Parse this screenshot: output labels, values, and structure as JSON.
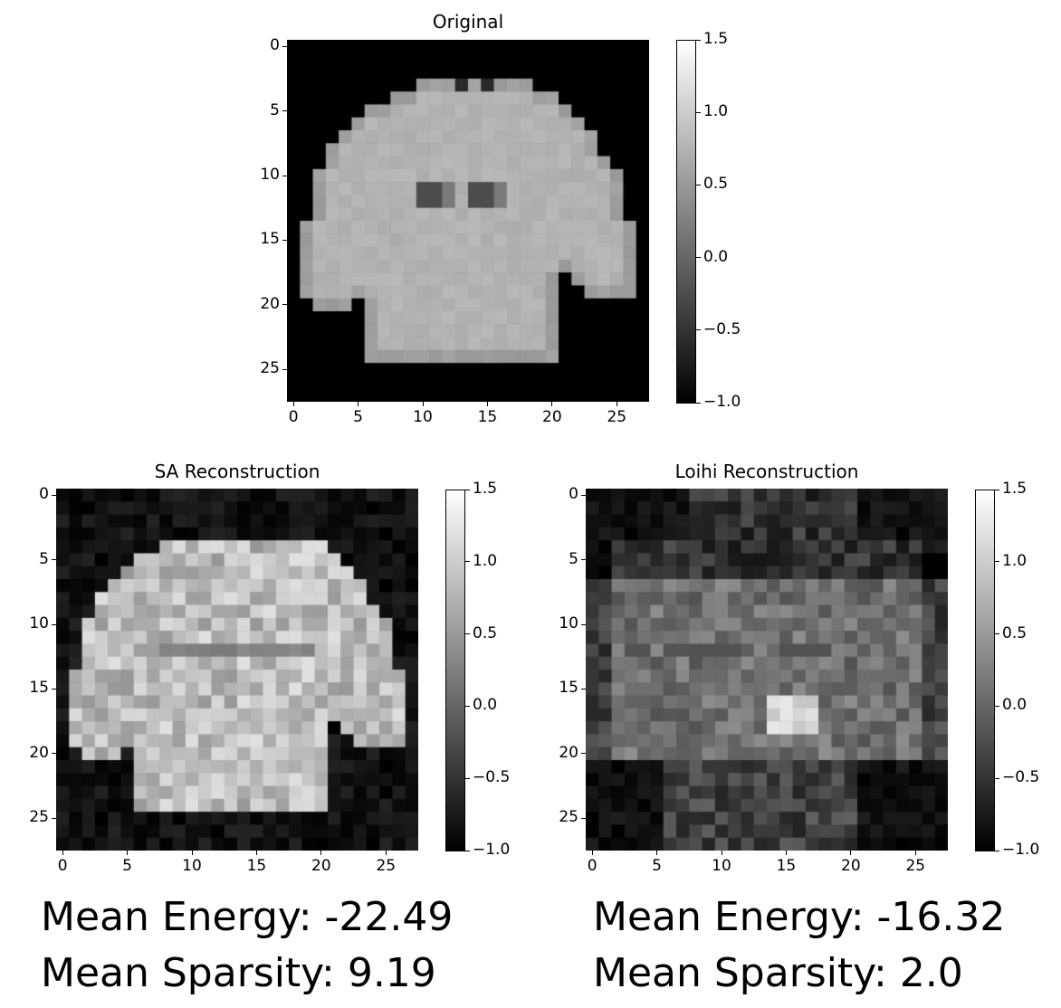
{
  "chart_data": [
    {
      "type": "heatmap",
      "title": "Original",
      "xlabel": "",
      "ylabel": "",
      "x_ticks": [
        "0",
        "5",
        "10",
        "15",
        "20",
        "25"
      ],
      "y_ticks": [
        "0",
        "5",
        "10",
        "15",
        "20",
        "25"
      ],
      "grid_size": [
        28,
        28
      ],
      "clim": [
        -1.0,
        1.5
      ],
      "colorbar_ticks": [
        "1.5",
        "1.0",
        "0.5",
        "0.0",
        "−0.5",
        "−1.0"
      ],
      "colormap": "gray"
    },
    {
      "type": "heatmap",
      "title": "SA Reconstruction",
      "xlabel": "",
      "ylabel": "",
      "x_ticks": [
        "0",
        "5",
        "10",
        "15",
        "20",
        "25"
      ],
      "y_ticks": [
        "0",
        "5",
        "10",
        "15",
        "20",
        "25"
      ],
      "grid_size": [
        28,
        28
      ],
      "clim": [
        -1.0,
        1.5
      ],
      "colorbar_ticks": [
        "1.5",
        "1.0",
        "0.5",
        "0.0",
        "−0.5",
        "−1.0"
      ],
      "colormap": "gray"
    },
    {
      "type": "heatmap",
      "title": "Loihi Reconstruction",
      "xlabel": "",
      "ylabel": "",
      "x_ticks": [
        "0",
        "5",
        "10",
        "15",
        "20",
        "25"
      ],
      "y_ticks": [
        "0",
        "5",
        "10",
        "15",
        "20",
        "25"
      ],
      "grid_size": [
        28,
        28
      ],
      "clim": [
        -1.0,
        1.5
      ],
      "colorbar_ticks": [
        "1.5",
        "1.0",
        "0.5",
        "0.0",
        "−0.5",
        "−1.0"
      ],
      "colormap": "gray"
    }
  ],
  "stats": {
    "sa": {
      "energy": "Mean Energy: -22.49",
      "sparsity": "Mean Sparsity: 9.19"
    },
    "loihi": {
      "energy": "Mean Energy: -16.32",
      "sparsity": "Mean Sparsity: 2.0"
    }
  }
}
